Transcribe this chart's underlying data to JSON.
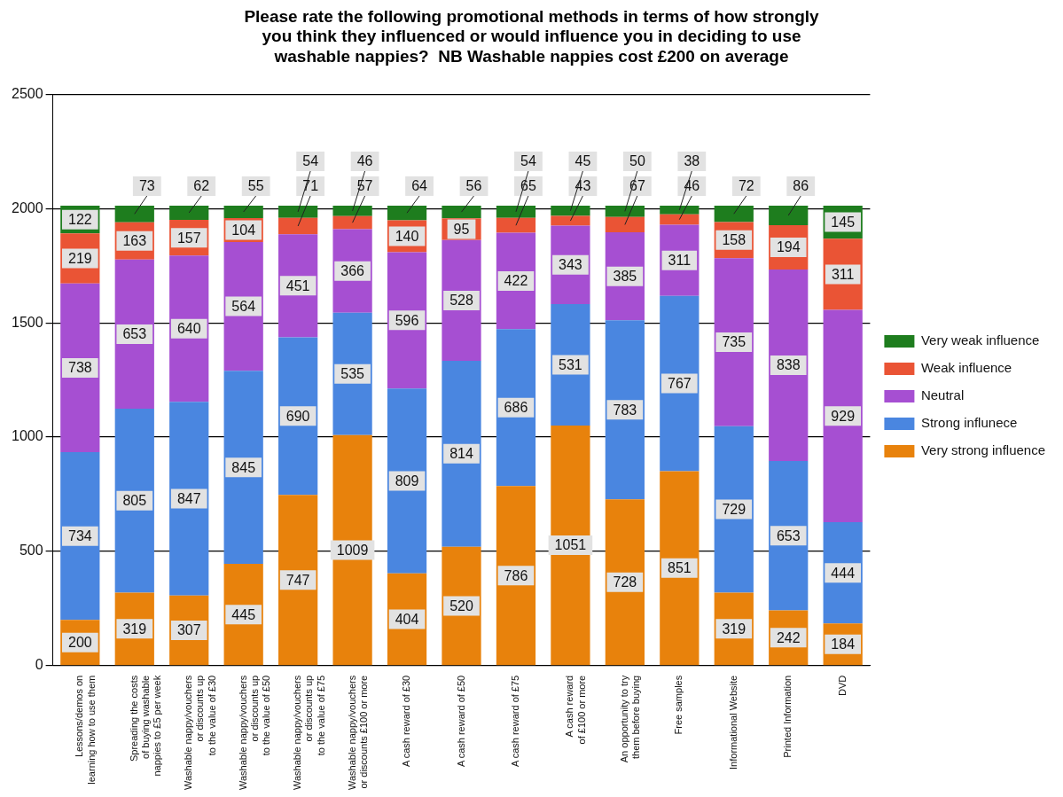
{
  "chart_data": {
    "type": "bar",
    "title": "Please rate the following promotional methods in terms of how strongly\nyou think they influenced or would influence you in deciding to use\nwashable nappies?  NB Washable nappies cost £200 on average",
    "categories": [
      "Lessons/demos on\nlearning how to use them",
      "Spreading the costs\nof buying washable\nnappies to £5 per week",
      "Washable nappy/vouchers\nor discounts up\nto the value of £30",
      "Washable nappy/vouchers\nor discounts up\nto the value of £50",
      "Washable nappy/vouchers\nor discounts up\nto the value of £75",
      "Washable nappy/vouchers\nor discounts £100 or more",
      "A cash reward of £30",
      "A cash reward of £50",
      "A cash reward of £75",
      "A cash reward\nof £100 or more",
      "An opportunity to try\nthem before buying",
      "Free samples",
      "Informational Website",
      "Printed Information",
      "DVD"
    ],
    "series": [
      {
        "name": "Very strong influence",
        "color": "#e8820c",
        "values": [
          200,
          319,
          307,
          445,
          747,
          1009,
          404,
          520,
          786,
          1051,
          728,
          851,
          319,
          242,
          184
        ]
      },
      {
        "name": "Strong influnece",
        "color": "#4a86e0",
        "values": [
          734,
          805,
          847,
          845,
          690,
          535,
          809,
          814,
          686,
          531,
          783,
          767,
          729,
          653,
          444
        ]
      },
      {
        "name": "Neutral",
        "color": "#a64fd2",
        "values": [
          738,
          653,
          640,
          564,
          451,
          366,
          596,
          528,
          422,
          343,
          385,
          311,
          735,
          838,
          929
        ]
      },
      {
        "name": "Weak influence",
        "color": "#ea5435",
        "values": [
          219,
          163,
          157,
          104,
          71,
          57,
          140,
          95,
          65,
          43,
          67,
          46,
          158,
          194,
          311
        ]
      },
      {
        "name": "Very weak influence",
        "color": "#1e7d1e",
        "values": [
          122,
          73,
          62,
          55,
          54,
          46,
          64,
          56,
          54,
          45,
          50,
          38,
          72,
          86,
          145
        ]
      }
    ],
    "stacked": true,
    "ylim": [
      0,
      2500
    ],
    "yticks": [
      0,
      500,
      1000,
      1500,
      2000,
      2500
    ],
    "grid": "y",
    "legend": "right",
    "data_labels": true
  }
}
